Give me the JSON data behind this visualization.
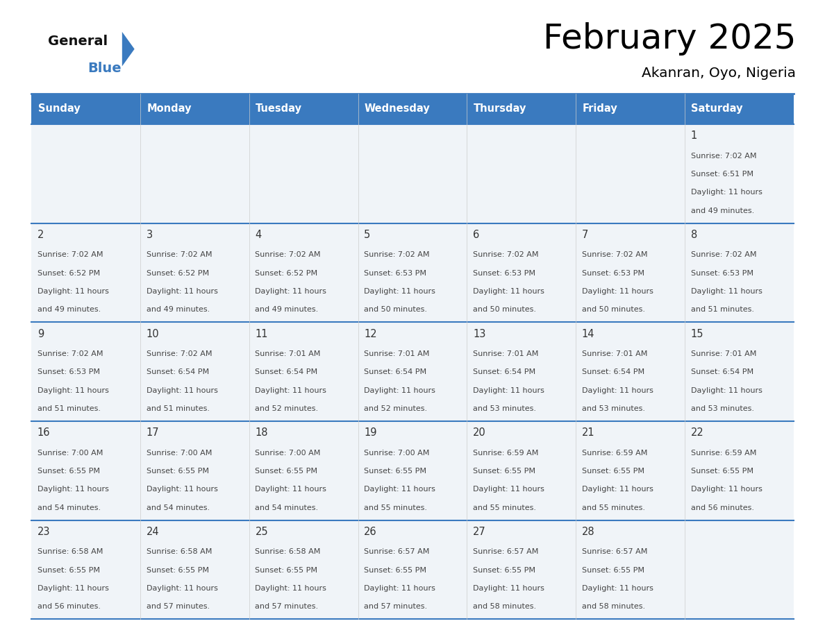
{
  "title": "February 2025",
  "subtitle": "Akanran, Oyo, Nigeria",
  "header_color": "#3a7abf",
  "header_text_color": "#ffffff",
  "day_names": [
    "Sunday",
    "Monday",
    "Tuesday",
    "Wednesday",
    "Thursday",
    "Friday",
    "Saturday"
  ],
  "background_color": "#ffffff",
  "cell_bg": "#f0f4f8",
  "grid_line_color": "#3a7abf",
  "text_color": "#444444",
  "day_number_color": "#333333",
  "days": [
    {
      "date": 1,
      "row": 0,
      "col": 6,
      "sunrise": "7:02 AM",
      "sunset": "6:51 PM",
      "daylight_hours": 11,
      "daylight_minutes": 49
    },
    {
      "date": 2,
      "row": 1,
      "col": 0,
      "sunrise": "7:02 AM",
      "sunset": "6:52 PM",
      "daylight_hours": 11,
      "daylight_minutes": 49
    },
    {
      "date": 3,
      "row": 1,
      "col": 1,
      "sunrise": "7:02 AM",
      "sunset": "6:52 PM",
      "daylight_hours": 11,
      "daylight_minutes": 49
    },
    {
      "date": 4,
      "row": 1,
      "col": 2,
      "sunrise": "7:02 AM",
      "sunset": "6:52 PM",
      "daylight_hours": 11,
      "daylight_minutes": 49
    },
    {
      "date": 5,
      "row": 1,
      "col": 3,
      "sunrise": "7:02 AM",
      "sunset": "6:53 PM",
      "daylight_hours": 11,
      "daylight_minutes": 50
    },
    {
      "date": 6,
      "row": 1,
      "col": 4,
      "sunrise": "7:02 AM",
      "sunset": "6:53 PM",
      "daylight_hours": 11,
      "daylight_minutes": 50
    },
    {
      "date": 7,
      "row": 1,
      "col": 5,
      "sunrise": "7:02 AM",
      "sunset": "6:53 PM",
      "daylight_hours": 11,
      "daylight_minutes": 50
    },
    {
      "date": 8,
      "row": 1,
      "col": 6,
      "sunrise": "7:02 AM",
      "sunset": "6:53 PM",
      "daylight_hours": 11,
      "daylight_minutes": 51
    },
    {
      "date": 9,
      "row": 2,
      "col": 0,
      "sunrise": "7:02 AM",
      "sunset": "6:53 PM",
      "daylight_hours": 11,
      "daylight_minutes": 51
    },
    {
      "date": 10,
      "row": 2,
      "col": 1,
      "sunrise": "7:02 AM",
      "sunset": "6:54 PM",
      "daylight_hours": 11,
      "daylight_minutes": 51
    },
    {
      "date": 11,
      "row": 2,
      "col": 2,
      "sunrise": "7:01 AM",
      "sunset": "6:54 PM",
      "daylight_hours": 11,
      "daylight_minutes": 52
    },
    {
      "date": 12,
      "row": 2,
      "col": 3,
      "sunrise": "7:01 AM",
      "sunset": "6:54 PM",
      "daylight_hours": 11,
      "daylight_minutes": 52
    },
    {
      "date": 13,
      "row": 2,
      "col": 4,
      "sunrise": "7:01 AM",
      "sunset": "6:54 PM",
      "daylight_hours": 11,
      "daylight_minutes": 53
    },
    {
      "date": 14,
      "row": 2,
      "col": 5,
      "sunrise": "7:01 AM",
      "sunset": "6:54 PM",
      "daylight_hours": 11,
      "daylight_minutes": 53
    },
    {
      "date": 15,
      "row": 2,
      "col": 6,
      "sunrise": "7:01 AM",
      "sunset": "6:54 PM",
      "daylight_hours": 11,
      "daylight_minutes": 53
    },
    {
      "date": 16,
      "row": 3,
      "col": 0,
      "sunrise": "7:00 AM",
      "sunset": "6:55 PM",
      "daylight_hours": 11,
      "daylight_minutes": 54
    },
    {
      "date": 17,
      "row": 3,
      "col": 1,
      "sunrise": "7:00 AM",
      "sunset": "6:55 PM",
      "daylight_hours": 11,
      "daylight_minutes": 54
    },
    {
      "date": 18,
      "row": 3,
      "col": 2,
      "sunrise": "7:00 AM",
      "sunset": "6:55 PM",
      "daylight_hours": 11,
      "daylight_minutes": 54
    },
    {
      "date": 19,
      "row": 3,
      "col": 3,
      "sunrise": "7:00 AM",
      "sunset": "6:55 PM",
      "daylight_hours": 11,
      "daylight_minutes": 55
    },
    {
      "date": 20,
      "row": 3,
      "col": 4,
      "sunrise": "6:59 AM",
      "sunset": "6:55 PM",
      "daylight_hours": 11,
      "daylight_minutes": 55
    },
    {
      "date": 21,
      "row": 3,
      "col": 5,
      "sunrise": "6:59 AM",
      "sunset": "6:55 PM",
      "daylight_hours": 11,
      "daylight_minutes": 55
    },
    {
      "date": 22,
      "row": 3,
      "col": 6,
      "sunrise": "6:59 AM",
      "sunset": "6:55 PM",
      "daylight_hours": 11,
      "daylight_minutes": 56
    },
    {
      "date": 23,
      "row": 4,
      "col": 0,
      "sunrise": "6:58 AM",
      "sunset": "6:55 PM",
      "daylight_hours": 11,
      "daylight_minutes": 56
    },
    {
      "date": 24,
      "row": 4,
      "col": 1,
      "sunrise": "6:58 AM",
      "sunset": "6:55 PM",
      "daylight_hours": 11,
      "daylight_minutes": 57
    },
    {
      "date": 25,
      "row": 4,
      "col": 2,
      "sunrise": "6:58 AM",
      "sunset": "6:55 PM",
      "daylight_hours": 11,
      "daylight_minutes": 57
    },
    {
      "date": 26,
      "row": 4,
      "col": 3,
      "sunrise": "6:57 AM",
      "sunset": "6:55 PM",
      "daylight_hours": 11,
      "daylight_minutes": 57
    },
    {
      "date": 27,
      "row": 4,
      "col": 4,
      "sunrise": "6:57 AM",
      "sunset": "6:55 PM",
      "daylight_hours": 11,
      "daylight_minutes": 58
    },
    {
      "date": 28,
      "row": 4,
      "col": 5,
      "sunrise": "6:57 AM",
      "sunset": "6:55 PM",
      "daylight_hours": 11,
      "daylight_minutes": 58
    }
  ],
  "num_rows": 5,
  "num_cols": 7
}
